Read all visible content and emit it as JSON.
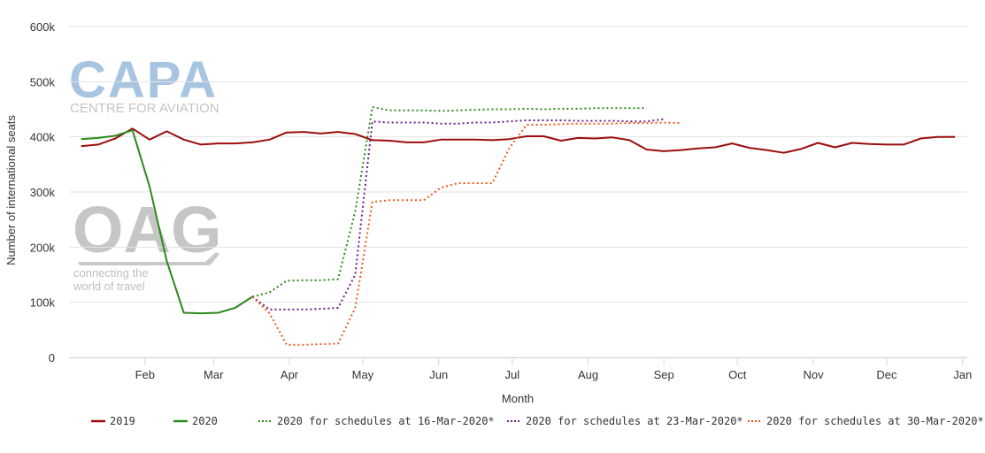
{
  "chart_data": {
    "type": "line",
    "xlabel": "Month",
    "ylabel": "Number of international seats",
    "ylim": [
      0,
      600000
    ],
    "y_ticks": [
      {
        "value": 0,
        "label": "0"
      },
      {
        "value": 100000,
        "label": "100k"
      },
      {
        "value": 200000,
        "label": "200k"
      },
      {
        "value": 300000,
        "label": "300k"
      },
      {
        "value": 400000,
        "label": "400k"
      },
      {
        "value": 500000,
        "label": "500k"
      },
      {
        "value": 600000,
        "label": "600k"
      }
    ],
    "xlim": [
      0,
      52
    ],
    "x_ticks": [
      {
        "value": 4.43,
        "label": "Feb"
      },
      {
        "value": 8.43,
        "label": "Mar"
      },
      {
        "value": 12.86,
        "label": "Apr"
      },
      {
        "value": 17.14,
        "label": "May"
      },
      {
        "value": 21.57,
        "label": "Jun"
      },
      {
        "value": 25.86,
        "label": "Jul"
      },
      {
        "value": 30.29,
        "label": "Aug"
      },
      {
        "value": 34.71,
        "label": "Sep"
      },
      {
        "value": 39.0,
        "label": "Oct"
      },
      {
        "value": 43.43,
        "label": "Nov"
      },
      {
        "value": 47.71,
        "label": "Dec"
      },
      {
        "value": 52.14,
        "label": "Jan"
      }
    ],
    "grid": true,
    "legend_position": "bottom",
    "series": [
      {
        "name": "2019",
        "color": "#9b0d0d",
        "dash": "solid",
        "points": [
          [
            0.7,
            383000
          ],
          [
            1.7,
            386000
          ],
          [
            2.7,
            397000
          ],
          [
            3.7,
            415000
          ],
          [
            4.7,
            395000
          ],
          [
            5.7,
            410000
          ],
          [
            6.7,
            395000
          ],
          [
            7.7,
            386000
          ],
          [
            8.7,
            388000
          ],
          [
            9.7,
            388000
          ],
          [
            10.7,
            390000
          ],
          [
            11.7,
            395000
          ],
          [
            12.7,
            408000
          ],
          [
            13.7,
            409000
          ],
          [
            14.7,
            406000
          ],
          [
            15.7,
            409000
          ],
          [
            16.7,
            405000
          ],
          [
            17.7,
            394000
          ],
          [
            18.7,
            393000
          ],
          [
            19.7,
            390000
          ],
          [
            20.7,
            390000
          ],
          [
            21.7,
            395000
          ],
          [
            22.7,
            395000
          ],
          [
            23.7,
            395000
          ],
          [
            24.7,
            394000
          ],
          [
            25.7,
            396000
          ],
          [
            26.7,
            401000
          ],
          [
            27.7,
            401000
          ],
          [
            28.7,
            393000
          ],
          [
            29.7,
            398000
          ],
          [
            30.7,
            397000
          ],
          [
            31.7,
            399000
          ],
          [
            32.7,
            394000
          ],
          [
            33.7,
            377000
          ],
          [
            34.7,
            374000
          ],
          [
            35.7,
            376000
          ],
          [
            36.7,
            379000
          ],
          [
            37.7,
            381000
          ],
          [
            38.7,
            388000
          ],
          [
            39.7,
            380000
          ],
          [
            40.7,
            376000
          ],
          [
            41.7,
            371000
          ],
          [
            42.7,
            378000
          ],
          [
            43.7,
            389000
          ],
          [
            44.7,
            381000
          ],
          [
            45.7,
            389000
          ],
          [
            46.7,
            387000
          ],
          [
            47.7,
            386000
          ],
          [
            48.7,
            386000
          ],
          [
            49.7,
            397000
          ],
          [
            50.7,
            400000
          ],
          [
            51.7,
            400000
          ]
        ]
      },
      {
        "name": "2020",
        "color": "#2a8a1a",
        "dash": "solid",
        "points": [
          [
            0.7,
            396000
          ],
          [
            1.7,
            398000
          ],
          [
            2.7,
            402000
          ],
          [
            3.7,
            412000
          ],
          [
            4.7,
            310000
          ],
          [
            5.7,
            175000
          ],
          [
            6.7,
            81000
          ],
          [
            7.7,
            80000
          ],
          [
            8.7,
            81000
          ],
          [
            9.7,
            90000
          ],
          [
            10.7,
            110000
          ]
        ]
      },
      {
        "name": "2020 for schedules at 16-Mar-2020*",
        "color": "#2a8a1a",
        "dash": "dotted",
        "points": [
          [
            10.7,
            110000
          ],
          [
            11.7,
            118000
          ],
          [
            12.7,
            139000
          ],
          [
            13.7,
            140000
          ],
          [
            14.7,
            140000
          ],
          [
            15.7,
            142000
          ],
          [
            16.7,
            265000
          ],
          [
            17.7,
            454000
          ],
          [
            18.7,
            448000
          ],
          [
            19.7,
            448000
          ],
          [
            20.7,
            448000
          ],
          [
            21.7,
            447000
          ],
          [
            22.7,
            448000
          ],
          [
            23.7,
            449000
          ],
          [
            24.7,
            450000
          ],
          [
            25.7,
            450000
          ],
          [
            26.7,
            451000
          ],
          [
            27.7,
            450000
          ],
          [
            28.7,
            451000
          ],
          [
            29.7,
            451000
          ],
          [
            30.7,
            452000
          ],
          [
            31.7,
            452000
          ],
          [
            32.7,
            452000
          ],
          [
            33.7,
            452000
          ]
        ]
      },
      {
        "name": "2020 for schedules at 23-Mar-2020*",
        "color": "#6b1f8a",
        "dash": "dotted",
        "points": [
          [
            10.7,
            110000
          ],
          [
            11.7,
            87000
          ],
          [
            12.7,
            87000
          ],
          [
            13.7,
            87000
          ],
          [
            14.7,
            88000
          ],
          [
            15.7,
            90000
          ],
          [
            16.7,
            150000
          ],
          [
            17.7,
            428000
          ],
          [
            18.7,
            426000
          ],
          [
            19.7,
            426000
          ],
          [
            20.7,
            426000
          ],
          [
            21.7,
            424000
          ],
          [
            22.7,
            424000
          ],
          [
            23.7,
            426000
          ],
          [
            24.7,
            426000
          ],
          [
            25.7,
            428000
          ],
          [
            26.7,
            430000
          ],
          [
            27.7,
            430000
          ],
          [
            28.7,
            430000
          ],
          [
            29.7,
            429000
          ],
          [
            30.7,
            429000
          ],
          [
            31.7,
            429000
          ],
          [
            32.7,
            428000
          ],
          [
            33.7,
            428000
          ],
          [
            34.7,
            432000
          ]
        ]
      },
      {
        "name": "2020 for schedules at 30-Mar-2020*",
        "color": "#ee5a18",
        "dash": "dotted",
        "points": [
          [
            10.7,
            110000
          ],
          [
            11.7,
            80000
          ],
          [
            12.7,
            23000
          ],
          [
            13.7,
            23000
          ],
          [
            14.7,
            24000
          ],
          [
            15.7,
            25000
          ],
          [
            16.7,
            90000
          ],
          [
            17.7,
            282000
          ],
          [
            18.7,
            285000
          ],
          [
            19.7,
            285000
          ],
          [
            20.7,
            285000
          ],
          [
            21.7,
            308000
          ],
          [
            22.7,
            316000
          ],
          [
            23.7,
            316000
          ],
          [
            24.7,
            316000
          ],
          [
            25.7,
            380000
          ],
          [
            26.7,
            422000
          ],
          [
            27.7,
            422000
          ],
          [
            28.7,
            423000
          ],
          [
            29.7,
            424000
          ],
          [
            30.7,
            424000
          ],
          [
            31.7,
            424000
          ],
          [
            32.7,
            425000
          ],
          [
            33.7,
            425000
          ],
          [
            34.7,
            426000
          ],
          [
            35.7,
            425000
          ]
        ]
      }
    ]
  },
  "watermarks": {
    "capa_logo": "CAPA",
    "capa_subtitle": "CENTRE FOR AVIATION",
    "oag_logo": "OAG",
    "oag_tagline_1": "connecting the",
    "oag_tagline_2": "world of travel"
  }
}
